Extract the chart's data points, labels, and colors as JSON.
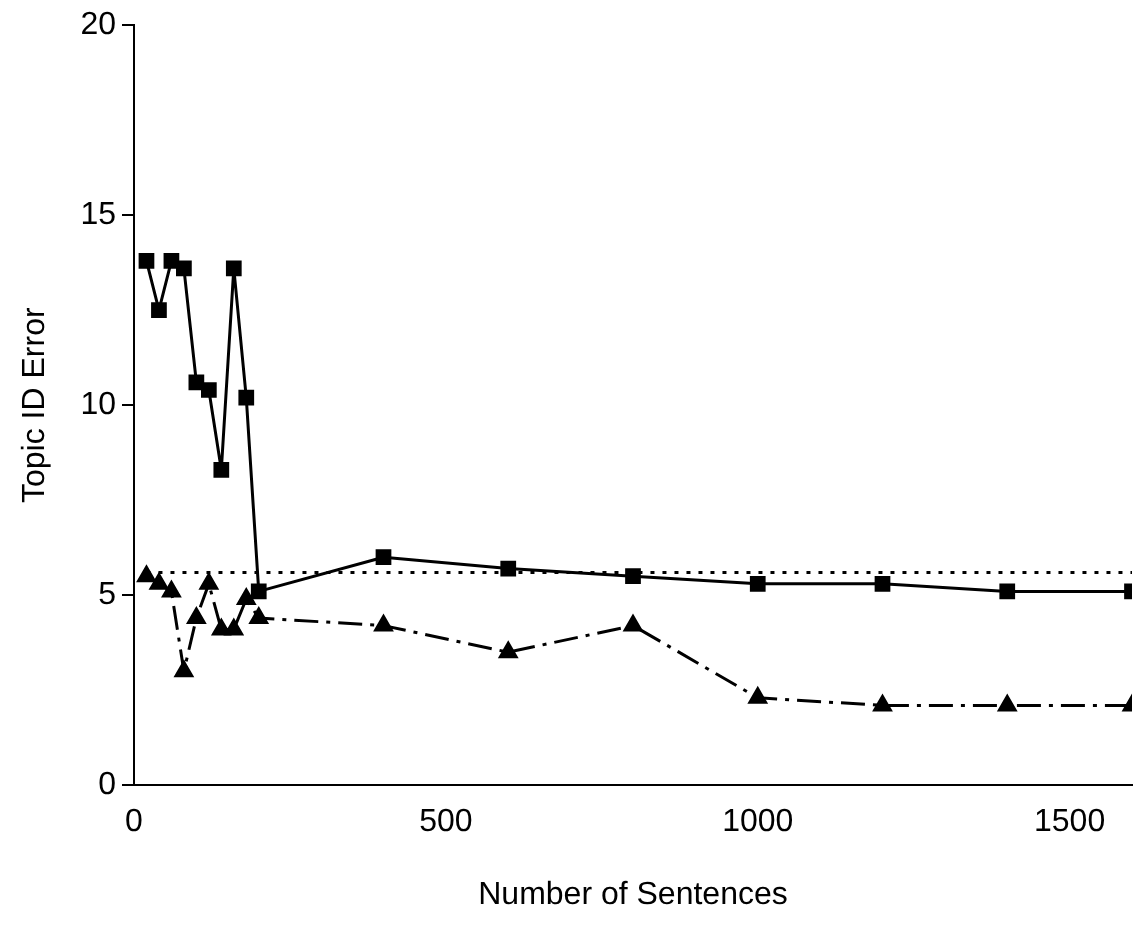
{
  "chart_data": {
    "type": "line",
    "xlabel": "Number of Sentences",
    "ylabel": "Topic ID Error",
    "xlim": [
      0,
      1600
    ],
    "xticks": [
      0,
      500,
      1000,
      1500
    ],
    "ylim": [
      0,
      20
    ],
    "yticks": [
      0,
      5,
      10,
      15,
      20
    ],
    "grid": false,
    "legend": false,
    "series": [
      {
        "color": "#000000",
        "marker": "square",
        "line_style": "solid",
        "x": [
          20,
          40,
          60,
          80,
          100,
          120,
          140,
          160,
          180,
          200,
          400,
          600,
          800,
          1000,
          1200,
          1400,
          1600
        ],
        "values": [
          13.8,
          12.5,
          13.8,
          13.6,
          10.6,
          10.4,
          8.3,
          13.6,
          10.2,
          5.1,
          6.0,
          5.7,
          5.5,
          5.3,
          5.3,
          5.1,
          5.1
        ]
      },
      {
        "color": "#000000",
        "marker": "triangle",
        "line_style": "dashdot",
        "x": [
          20,
          40,
          60,
          80,
          100,
          120,
          140,
          160,
          180,
          200,
          400,
          600,
          800,
          1000,
          1200,
          1400,
          1600
        ],
        "values": [
          5.5,
          5.3,
          5.1,
          3.0,
          4.4,
          5.3,
          4.1,
          4.1,
          4.9,
          4.4,
          4.2,
          3.5,
          4.2,
          2.3,
          2.1,
          2.1,
          2.1
        ]
      },
      {
        "color": "#000000",
        "marker": "none",
        "line_style": "dotted",
        "x": [
          20,
          1600
        ],
        "values": [
          5.6,
          5.6
        ]
      }
    ]
  }
}
